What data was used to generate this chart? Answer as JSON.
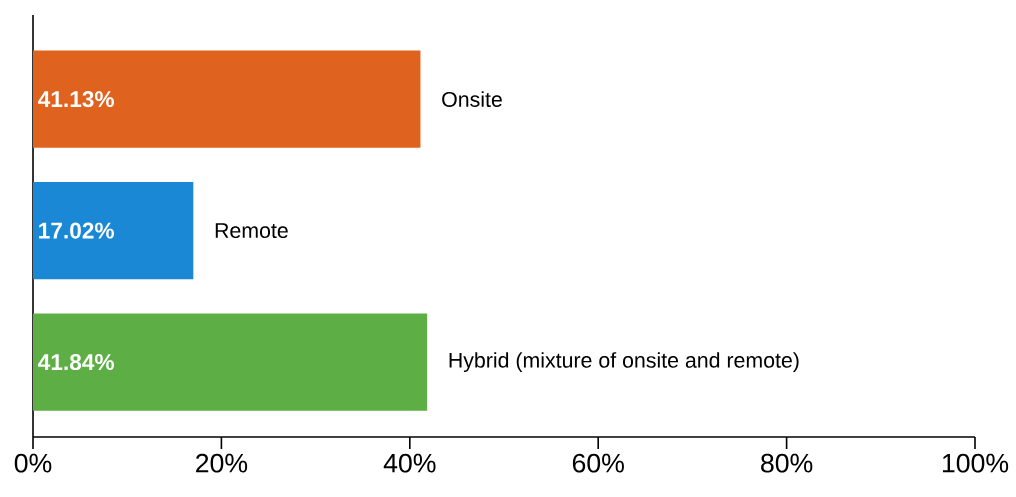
{
  "chart_data": {
    "type": "bar",
    "orientation": "horizontal",
    "categories": [
      "Onsite",
      "Remote",
      "Hybrid (mixture of onsite and remote)"
    ],
    "values": [
      41.13,
      17.02,
      41.84
    ],
    "value_labels": [
      "41.13%",
      "17.02%",
      "41.84%"
    ],
    "colors": [
      "#e0621f",
      "#1a88d4",
      "#5daf45"
    ],
    "xlim": [
      0,
      100
    ],
    "xticks": [
      {
        "value": 0,
        "label": "0%"
      },
      {
        "value": 20,
        "label": "20%"
      },
      {
        "value": 40,
        "label": "40%"
      },
      {
        "value": 60,
        "label": "60%"
      },
      {
        "value": 80,
        "label": "80%"
      },
      {
        "value": 100,
        "label": "100%"
      }
    ],
    "tick_labels": "x"
  }
}
